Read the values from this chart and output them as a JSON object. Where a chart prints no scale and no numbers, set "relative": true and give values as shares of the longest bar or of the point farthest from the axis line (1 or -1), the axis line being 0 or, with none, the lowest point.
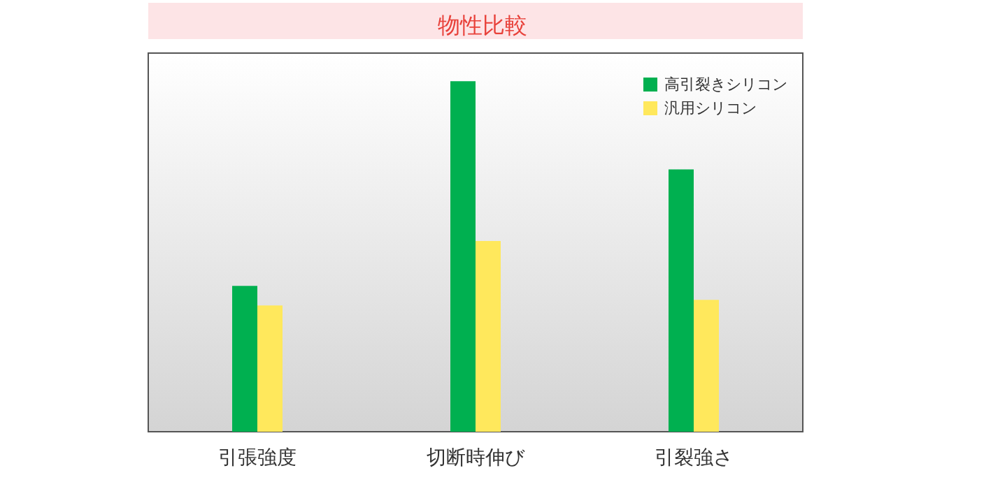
{
  "chart_data": {
    "type": "bar",
    "title": "物性比較",
    "relative": true,
    "categories": [
      "引張強度",
      "切断時伸び",
      "引裂強さ"
    ],
    "series": [
      {
        "name": "高引裂きシリコン",
        "color": "#00b050",
        "values": [
          0.416,
          1,
          0.748
        ]
      },
      {
        "name": "汎用シリコン",
        "color": "#ffe85c",
        "values": [
          0.36,
          0.544,
          0.376
        ]
      }
    ],
    "legend": "top right"
  }
}
